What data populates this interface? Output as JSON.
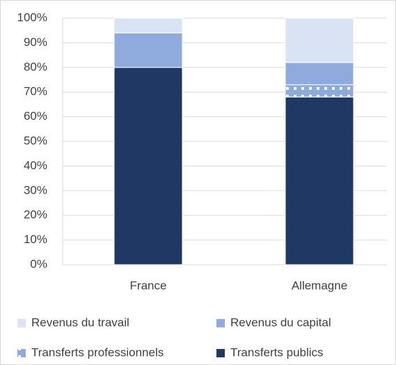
{
  "chart_data": {
    "type": "stacked_bar",
    "categories": [
      "France",
      "Allemagne"
    ],
    "series": [
      {
        "name": "Transferts publics",
        "color": "#1f3864",
        "values": [
          80,
          68
        ]
      },
      {
        "name": "Transferts professionnels",
        "color": "#8faadc",
        "pattern": "dots",
        "values": [
          0,
          5
        ]
      },
      {
        "name": "Revenus du capital",
        "color": "#8faadc",
        "values": [
          14,
          9
        ]
      },
      {
        "name": "Revenus du travail",
        "color": "#dae3f3",
        "values": [
          6,
          18
        ]
      }
    ],
    "ylim": [
      0,
      100
    ],
    "yticks": [
      {
        "value": 0,
        "label": "0%"
      },
      {
        "value": 10,
        "label": "10%"
      },
      {
        "value": 20,
        "label": "20%"
      },
      {
        "value": 30,
        "label": "30%"
      },
      {
        "value": 40,
        "label": "40%"
      },
      {
        "value": 50,
        "label": "50%"
      },
      {
        "value": 60,
        "label": "60%"
      },
      {
        "value": 70,
        "label": "70%"
      },
      {
        "value": 80,
        "label": "80%"
      },
      {
        "value": 90,
        "label": "90%"
      },
      {
        "value": 100,
        "label": "100%"
      }
    ],
    "grid": true,
    "legend": "bottom"
  }
}
